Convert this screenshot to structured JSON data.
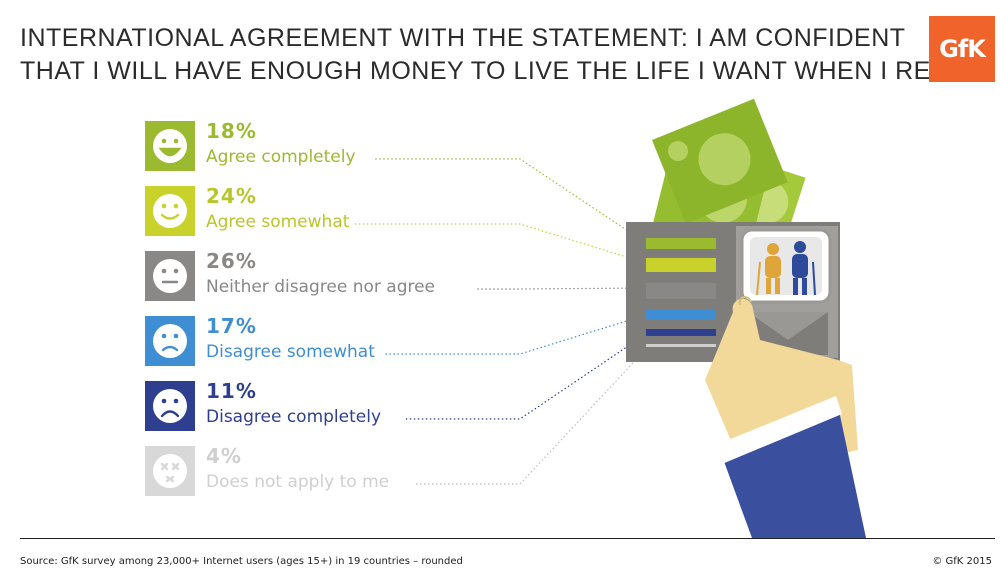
{
  "title_lines": [
    "INTERNATIONAL AGREEMENT WITH THE STATEMENT: I AM CONFIDENT",
    "THAT I WILL HAVE ENOUGH MONEY TO LIVE THE LIFE I WANT WHEN I RETIRE"
  ],
  "logo_text": "GfK",
  "source": "Source: GfK survey among 23,000+ Internet users (ages 15+) in 19 countries – rounded",
  "copyright": "© GfK 2015",
  "chart_data": {
    "type": "bar",
    "title": "INTERNATIONAL AGREEMENT WITH THE STATEMENT: I AM CONFIDENT THAT I WILL HAVE ENOUGH MONEY TO LIVE THE LIFE I WANT WHEN I RETIRE",
    "unit": "%",
    "categories": [
      "Agree completely",
      "Agree somewhat",
      "Neither disagree nor agree",
      "Disagree somewhat",
      "Disagree completely",
      "Does not apply to me"
    ],
    "values": [
      18,
      24,
      26,
      17,
      11,
      4
    ],
    "value_labels": [
      "18%",
      "24%",
      "26%",
      "17%",
      "11%",
      "4%"
    ],
    "colors": [
      "#9cba2f",
      "#c8d22a",
      "#8a8886",
      "#3f8ed3",
      "#2e3f8f",
      "#d8d8d8"
    ],
    "label_colors": [
      "#9cba2f",
      "#b9c62a",
      "#8a8886",
      "#3f8ed3",
      "#2e3f8f",
      "#cfcfcf"
    ],
    "faces": [
      "laugh",
      "smile",
      "neutral",
      "sad",
      "frown",
      "cross"
    ]
  }
}
